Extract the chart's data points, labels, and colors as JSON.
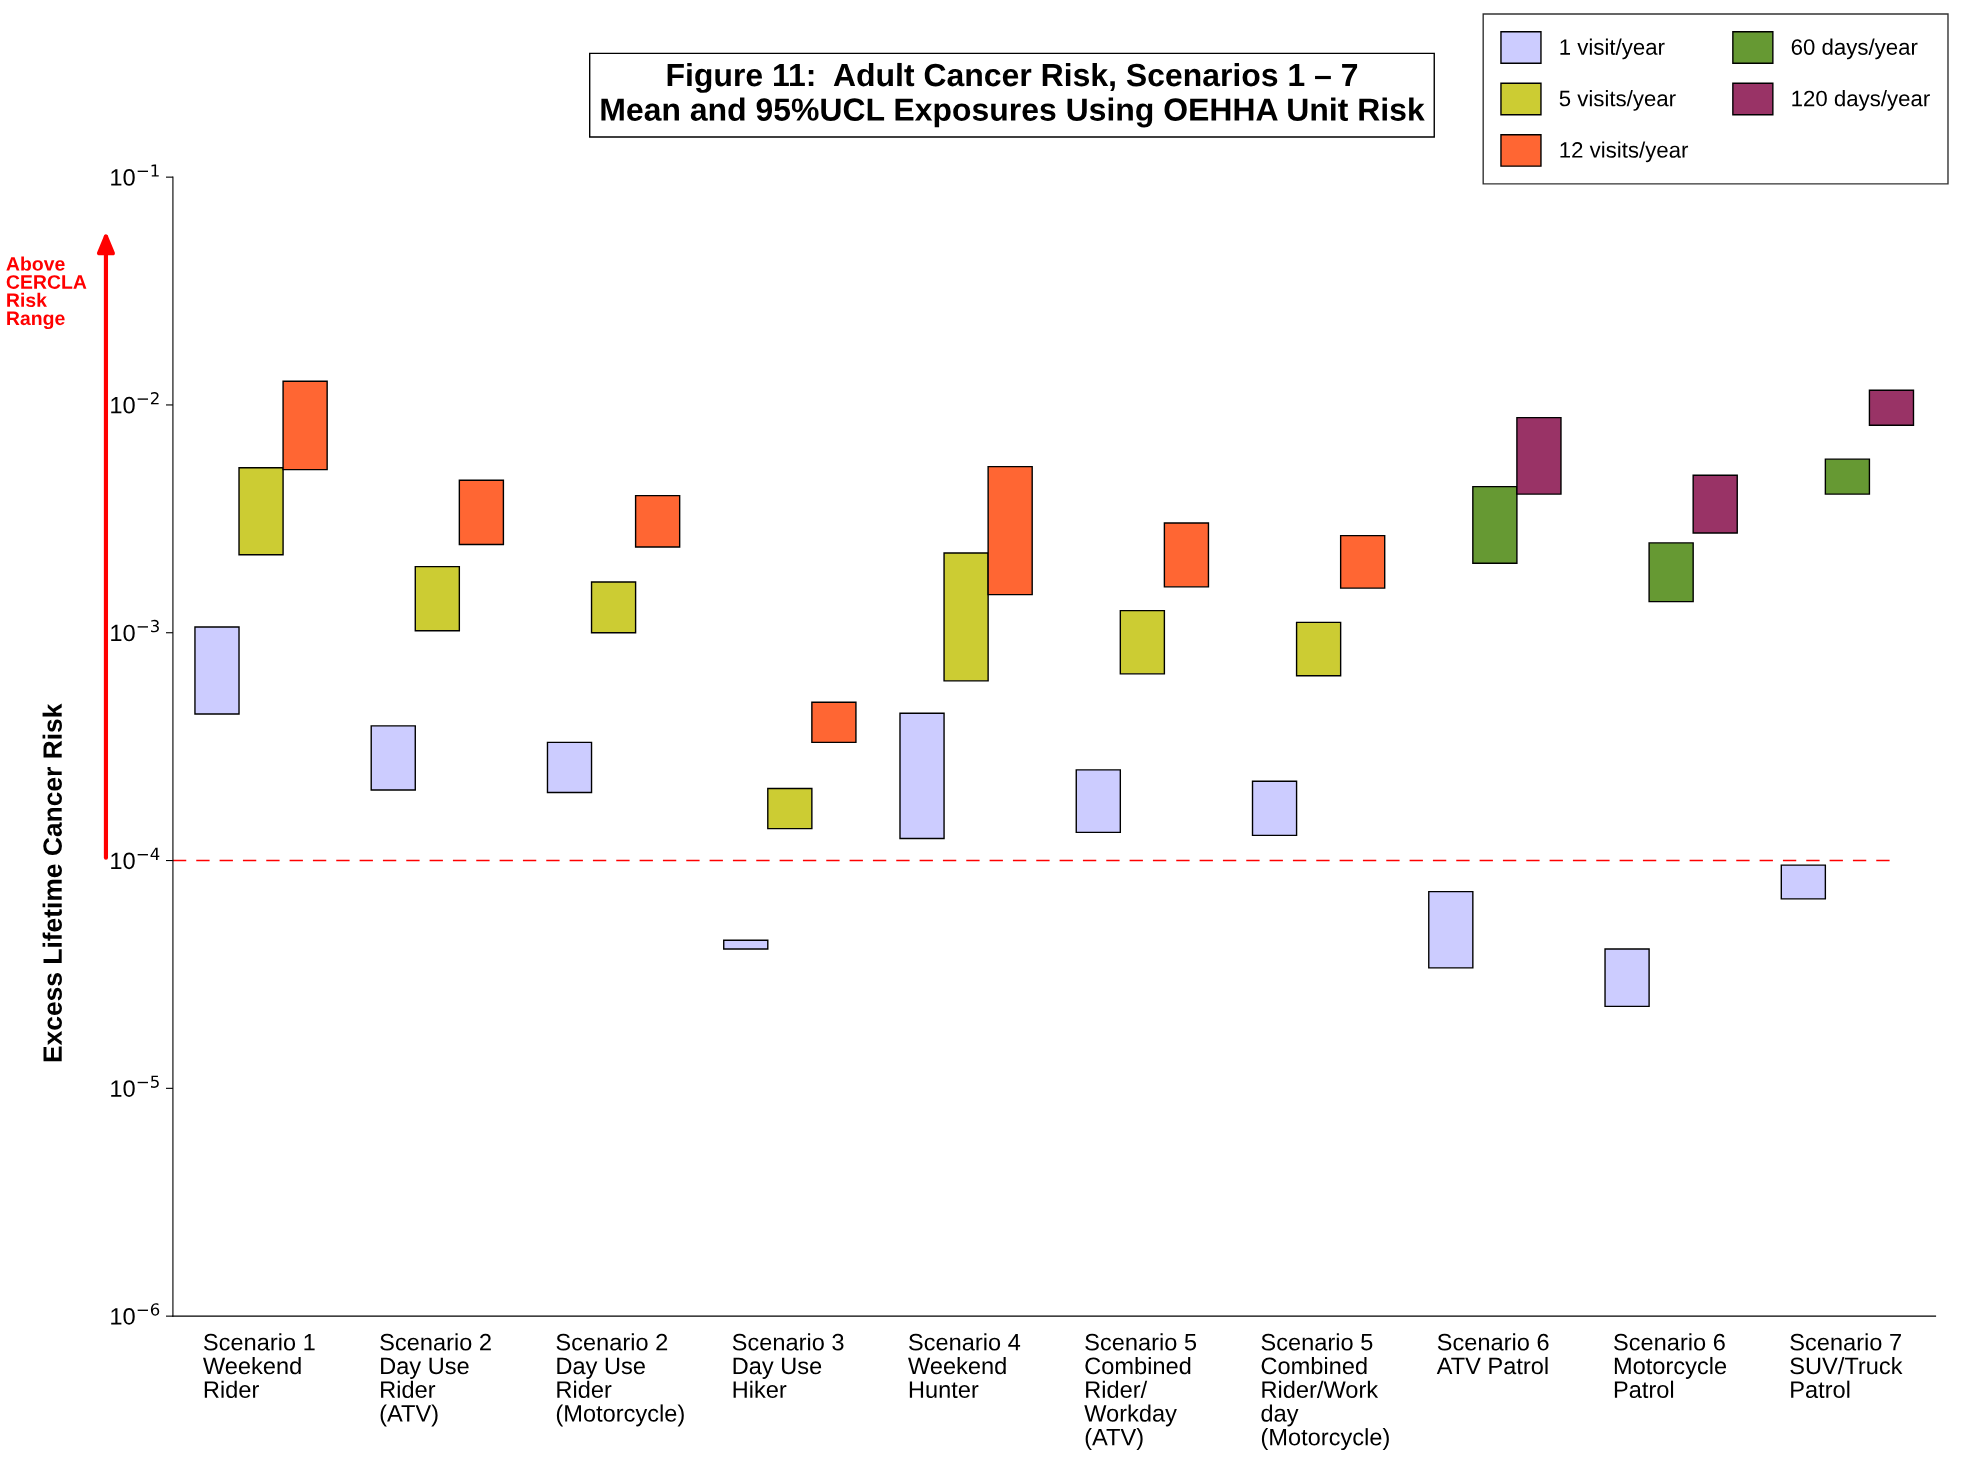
{
  "chart_data": {
    "type": "bar",
    "title": "Figure 11:  Adult Cancer Risk, Scenarios 1 – 7\nMean and 95%UCL Exposures Using OEHHA Unit Risk",
    "ylabel": "Excess Lifetime Cancer Risk",
    "categories": [
      "Scenario 1\nWeekend\nRider",
      "Scenario 2\nDay Use\nRider\n(ATV)",
      "Scenario 2\nDay Use\nRider\n(Motorcycle)",
      "Scenario 3\nDay Use\nHiker",
      "Scenario 4\nWeekend\nHunter",
      "Scenario 5\nCombined\nRider/\nWorkday\n(ATV)",
      "Scenario 5\nCombined\nRider/Work\nday\n(Motorcycle)",
      "Scenario 6\nATV Patrol",
      "Scenario 6\nMotorcycle\nPatrol",
      "Scenario 7\nSUV/Truck\nPatrol"
    ],
    "series": [
      {
        "name": "1 visit/year",
        "color": "#ccccff",
        "base": [
          0.00044,
          0.000204,
          0.000199,
          4.09e-05,
          0.000125,
          0.000133,
          0.000129,
          3.38e-05,
          2.29e-05,
          6.79e-05
        ],
        "values": [
          0.00062,
          0.000186,
          0.000131,
          3.8e-06,
          0.000318,
          0.000117,
          9.4e-05,
          3.92e-05,
          1.8e-05,
          2.76e-05
        ]
      },
      {
        "name": "5 visits/year",
        "color": "#cccc33",
        "base": [
          0.0022,
          0.00102,
          0.001,
          0.000138,
          0.000615,
          0.00066,
          0.000647,
          null,
          null,
          null
        ],
        "values": [
          0.0031,
          0.00093,
          0.00067,
          6.9e-05,
          0.001625,
          0.00059,
          0.000463,
          null,
          null,
          null
        ]
      },
      {
        "name": "12 visits/year",
        "color": "#ff6633",
        "base": [
          0.0052,
          0.00244,
          0.00238,
          0.00033,
          0.00147,
          0.00159,
          0.00157,
          null,
          null,
          null
        ],
        "values": [
          0.0075,
          0.00223,
          0.00162,
          0.000165,
          0.00389,
          0.00144,
          0.0011,
          null,
          null,
          null
        ]
      },
      {
        "name": "60 days/year",
        "color": "#669933",
        "base": [
          null,
          null,
          null,
          null,
          null,
          null,
          null,
          0.00202,
          0.00137,
          0.00406
        ],
        "values": [
          null,
          null,
          null,
          null,
          null,
          null,
          null,
          0.00236,
          0.00111,
          0.00172
        ]
      },
      {
        "name": "120 days/year",
        "color": "#993366",
        "base": [
          null,
          null,
          null,
          null,
          null,
          null,
          null,
          0.00406,
          0.00274,
          0.00815
        ],
        "values": [
          null,
          null,
          null,
          null,
          null,
          null,
          null,
          0.00474,
          0.00217,
          0.00345
        ]
      }
    ],
    "log": true,
    "ylim": [
      1e-06,
      0.1
    ],
    "yticks": [
      {
        "value": 1e-06,
        "label": "10$^{−6}$"
      },
      {
        "value": 1e-05,
        "label": "10$^{−5}$"
      },
      {
        "value": 0.0001,
        "label": "10$^{−4}$"
      },
      {
        "value": 0.001,
        "label": "10$^{−3}$"
      },
      {
        "value": 0.01,
        "label": "10$^{−2}$"
      },
      {
        "value": 0.1,
        "label": "10$^{−1}$"
      }
    ],
    "ref_lines": [
      {
        "axis": "y",
        "value": 0.0001,
        "color": "#ff0000",
        "line_style": "dashed"
      }
    ],
    "annotations": [
      "Above\nCERCLA\nRisk\nRange"
    ],
    "legend": "top right",
    "grid": false
  }
}
